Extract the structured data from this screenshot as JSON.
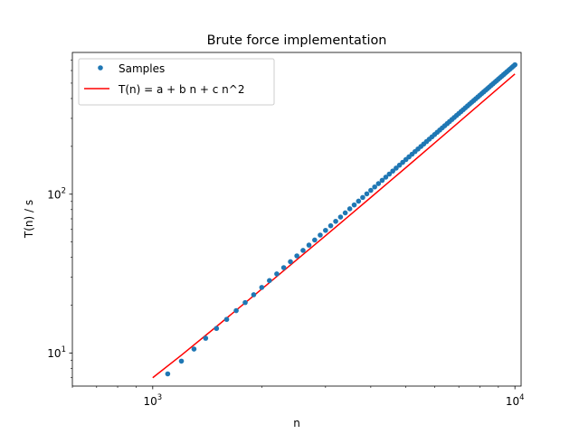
{
  "chart_data": {
    "type": "scatter",
    "title": "Brute force implementation",
    "xlabel": "n",
    "ylabel": "T(n) / s",
    "xscale": "log",
    "yscale": "log",
    "xlim": [
      600,
      10400
    ],
    "ylim": [
      6.2,
      780
    ],
    "grid": false,
    "legend_position": "top-left",
    "x_major_ticks": [
      {
        "value": 1000,
        "base": "10",
        "exp": "3"
      },
      {
        "value": 10000,
        "base": "10",
        "exp": "4"
      }
    ],
    "y_major_ticks": [
      {
        "value": 10,
        "base": "10",
        "exp": "1"
      },
      {
        "value": 100,
        "base": "10",
        "exp": "2"
      }
    ],
    "series": [
      {
        "name": "Samples",
        "kind": "points",
        "color": "#1f77b4",
        "x": [
          1000,
          1100,
          1200,
          1300,
          1400,
          1500,
          1600,
          1700,
          1800,
          1900,
          2000,
          2100,
          2200,
          2300,
          2400,
          2500,
          2600,
          2700,
          2800,
          2900,
          3000,
          3100,
          3200,
          3300,
          3400,
          3500,
          3600,
          3700,
          3800,
          3900,
          4000,
          4100,
          4200,
          4300,
          4400,
          4500,
          4600,
          4700,
          4800,
          4900,
          5000,
          5100,
          5200,
          5300,
          5400,
          5500,
          5600,
          5700,
          5800,
          5900,
          6000,
          6100,
          6200,
          6300,
          6400,
          6500,
          6600,
          6700,
          6800,
          6900,
          7000,
          7100,
          7200,
          7300,
          7400,
          7500,
          7600,
          7700,
          7800,
          7900,
          8000,
          8100,
          8200,
          8300,
          8400,
          8500,
          8600,
          8700,
          8800,
          8900,
          9000,
          9100,
          9200,
          9300,
          9400,
          9500,
          9600,
          9700,
          9800,
          9900,
          10000
        ],
        "y": [
          6.0,
          7.4,
          8.9,
          10.6,
          12.4,
          14.3,
          16.3,
          18.5,
          20.8,
          23.3,
          25.9,
          28.6,
          31.5,
          34.5,
          37.6,
          40.9,
          44.3,
          47.8,
          51.5,
          55.3,
          59.2,
          63.3,
          67.5,
          71.8,
          76.3,
          80.9,
          85.6,
          90.4,
          95.4,
          100.5,
          105.7,
          111.1,
          116.6,
          122.2,
          128.0,
          133.9,
          139.9,
          146.0,
          152.3,
          158.7,
          165.2,
          171.8,
          178.6,
          185.5,
          192.5,
          199.7,
          206.9,
          214.3,
          221.9,
          229.5,
          237.3,
          245.2,
          253.3,
          261.4,
          269.7,
          278.1,
          286.7,
          295.3,
          304.1,
          313.1,
          322.1,
          331.3,
          340.6,
          350.0,
          359.6,
          369.3,
          379.1,
          389.0,
          399.1,
          409.3,
          419.6,
          430.0,
          440.6,
          451.3,
          462.1,
          473.0,
          484.1,
          495.3,
          506.6,
          518.0,
          529.6,
          541.3,
          553.1,
          565.1,
          577.1,
          589.3,
          601.7,
          614.1,
          626.7,
          639.4,
          652.2
        ]
      },
      {
        "name": "T(n) = a + b n + c n^2",
        "kind": "line",
        "color": "#ff0000",
        "x": [
          1000,
          1200,
          1500,
          2000,
          2500,
          3000,
          3500,
          4000,
          4500,
          5000,
          6000,
          7000,
          8000,
          9000,
          10000
        ],
        "y": [
          7.0,
          9.7,
          14.7,
          25.3,
          38.7,
          54.8,
          73.7,
          95.4,
          119.8,
          147.0,
          209.8,
          283.8,
          368.6,
          464.3,
          571.0
        ]
      }
    ]
  }
}
